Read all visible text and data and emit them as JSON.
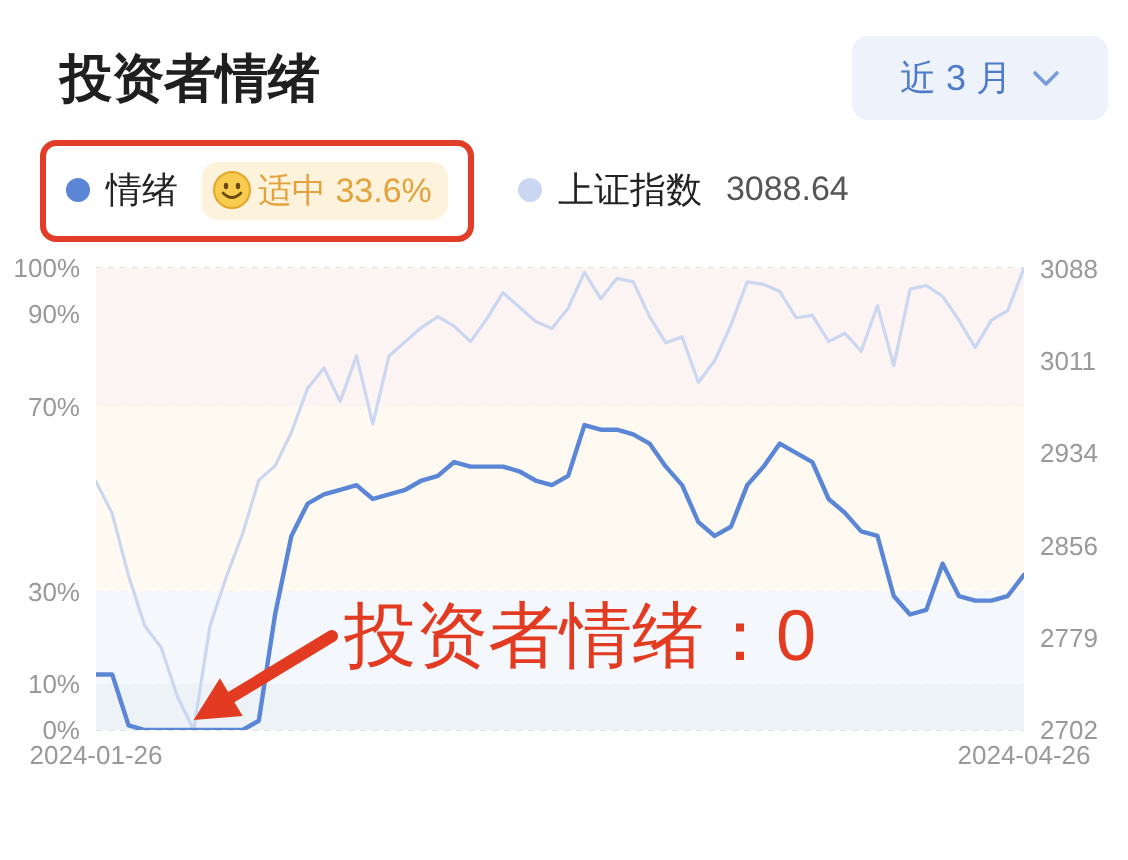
{
  "chart_data": {
    "type": "line",
    "title": "投资者情绪",
    "categories": [
      "2024-01-26",
      null,
      null,
      null,
      null,
      null,
      null,
      null,
      null,
      null,
      null,
      null,
      null,
      null,
      null,
      null,
      null,
      null,
      null,
      null,
      null,
      null,
      null,
      null,
      null,
      null,
      null,
      null,
      null,
      null,
      null,
      null,
      null,
      null,
      null,
      null,
      null,
      null,
      null,
      null,
      null,
      null,
      null,
      null,
      null,
      null,
      null,
      null,
      null,
      null,
      null,
      null,
      null,
      null,
      null,
      null,
      null,
      "2024-04-26"
    ],
    "series": [
      {
        "name": "情绪",
        "color": "#5b86d6",
        "values": [
          12,
          12,
          1,
          0,
          0,
          0,
          0,
          0,
          0,
          0,
          2,
          25,
          42,
          49,
          51,
          52,
          53,
          50,
          51,
          52,
          54,
          55,
          58,
          57,
          57,
          57,
          56,
          54,
          53,
          55,
          66,
          65,
          65,
          64,
          62,
          57,
          53,
          45,
          42,
          44,
          53,
          57,
          62,
          60,
          58,
          50,
          47,
          43,
          42,
          29,
          25,
          26,
          36,
          29,
          28,
          28,
          29,
          33.6
        ]
      },
      {
        "name": "上证指数",
        "color": "#cbd7f0",
        "axis": "y2",
        "values": [
          2910,
          2883,
          2831,
          2789,
          2771,
          2730,
          2702,
          2789,
          2830,
          2866,
          2911,
          2923,
          2951,
          2988,
          3005,
          2977,
          3015,
          2958,
          3015,
          3027,
          3039,
          3048,
          3040,
          3027,
          3046,
          3068,
          3056,
          3044,
          3038,
          3055,
          3085,
          3063,
          3080,
          3077,
          3048,
          3026,
          3031,
          2993,
          3011,
          3041,
          3077,
          3075,
          3069,
          3047,
          3049,
          3027,
          3034,
          3019,
          3057,
          3007,
          3071,
          3074,
          3065,
          3045,
          3022,
          3045,
          3053,
          3088.64
        ]
      }
    ],
    "ylim": [
      0,
      100
    ],
    "yticks": [
      {
        "value": 0,
        "label": "0%"
      },
      {
        "value": 10,
        "label": "10%"
      },
      {
        "value": 30,
        "label": "30%"
      },
      {
        "value": 70,
        "label": "70%"
      },
      {
        "value": 90,
        "label": "90%"
      },
      {
        "value": 100,
        "label": "100%"
      }
    ],
    "y2lim": [
      2702,
      3088.64
    ],
    "y2ticks": [
      2702,
      2779,
      2856,
      2934,
      3011,
      3088
    ],
    "bands": [
      {
        "axis": "y",
        "from": 70,
        "to": 100,
        "color": "#fcf3f3"
      },
      {
        "axis": "y",
        "from": 30,
        "to": 70,
        "color": "#fefaf1"
      },
      {
        "axis": "y",
        "from": 10,
        "to": 30,
        "color": "#f4f8fc"
      },
      {
        "axis": "y",
        "from": 0,
        "to": 10,
        "color": "#edf2f7"
      }
    ],
    "grid": "y",
    "legend": "top left",
    "marker": "none",
    "line_style": "solid",
    "annotations": [
      "近 3 月",
      "适中 33.6%",
      "3088.64",
      {
        "text": "投资者情绪：0",
        "y": 0
      }
    ]
  }
}
